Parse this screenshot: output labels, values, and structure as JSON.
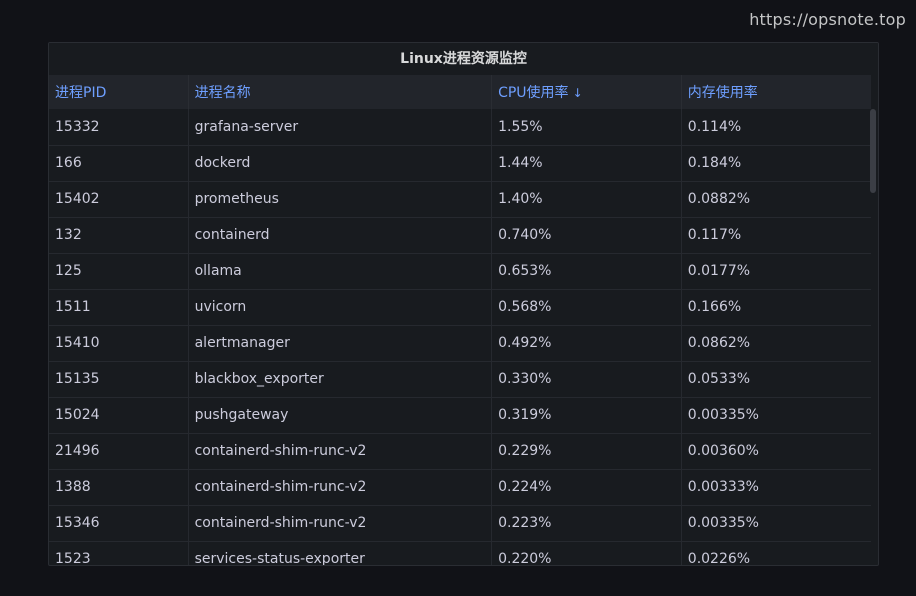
{
  "watermark": "https://opsnote.top",
  "panel": {
    "title": "Linux进程资源监控"
  },
  "table": {
    "headers": {
      "pid": "进程PID",
      "name": "进程名称",
      "cpu": "CPU使用率",
      "mem": "内存使用率"
    },
    "sort_icon": "arrow-down-icon",
    "rows": [
      {
        "pid": "15332",
        "name": "grafana-server",
        "cpu": "1.55%",
        "mem": "0.114%"
      },
      {
        "pid": "166",
        "name": "dockerd",
        "cpu": "1.44%",
        "mem": "0.184%"
      },
      {
        "pid": "15402",
        "name": "prometheus",
        "cpu": "1.40%",
        "mem": "0.0882%"
      },
      {
        "pid": "132",
        "name": "containerd",
        "cpu": "0.740%",
        "mem": "0.117%"
      },
      {
        "pid": "125",
        "name": "ollama",
        "cpu": "0.653%",
        "mem": "0.0177%"
      },
      {
        "pid": "1511",
        "name": "uvicorn",
        "cpu": "0.568%",
        "mem": "0.166%"
      },
      {
        "pid": "15410",
        "name": "alertmanager",
        "cpu": "0.492%",
        "mem": "0.0862%"
      },
      {
        "pid": "15135",
        "name": "blackbox_exporter",
        "cpu": "0.330%",
        "mem": "0.0533%"
      },
      {
        "pid": "15024",
        "name": "pushgateway",
        "cpu": "0.319%",
        "mem": "0.00335%"
      },
      {
        "pid": "21496",
        "name": "containerd-shim-runc-v2",
        "cpu": "0.229%",
        "mem": "0.00360%"
      },
      {
        "pid": "1388",
        "name": "containerd-shim-runc-v2",
        "cpu": "0.224%",
        "mem": "0.00333%"
      },
      {
        "pid": "15346",
        "name": "containerd-shim-runc-v2",
        "cpu": "0.223%",
        "mem": "0.00335%"
      },
      {
        "pid": "1523",
        "name": "services-status-exporter",
        "cpu": "0.220%",
        "mem": "0.0226%"
      }
    ]
  }
}
